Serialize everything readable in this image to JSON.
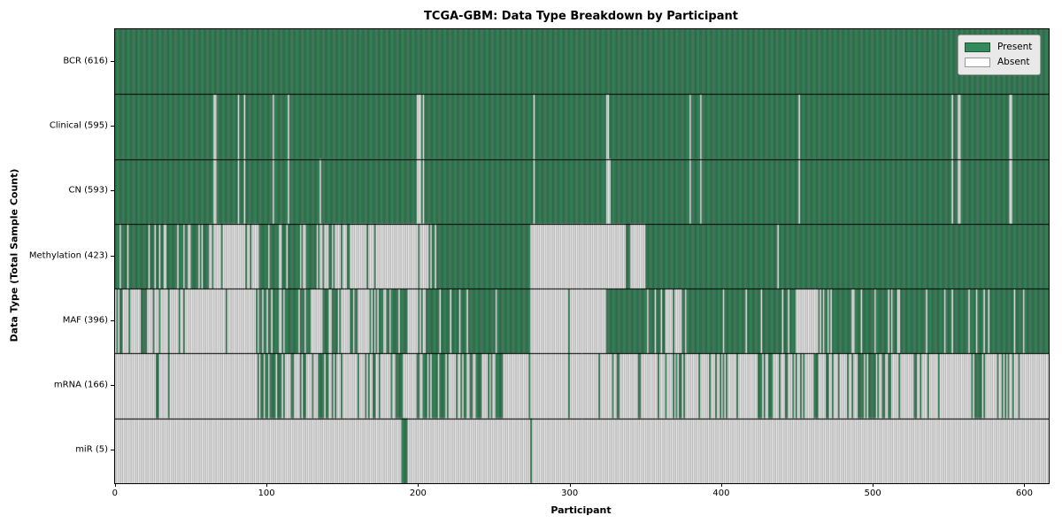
{
  "chart_data": {
    "type": "heatmap",
    "title": "TCGA-GBM: Data Type Breakdown by Participant",
    "xlabel": "Participant",
    "ylabel": "Data Type (Total Sample Count)",
    "x_ticks": [
      0,
      100,
      200,
      300,
      400,
      500,
      600
    ],
    "xlim": [
      -0.5,
      615.5
    ],
    "n_participants": 616,
    "grid": false,
    "legend_position": "upper right",
    "legend": [
      {
        "label": "Present",
        "color": "#348a5b"
      },
      {
        "label": "Absent",
        "color": "#ffffff"
      }
    ],
    "colors": {
      "present_fill": "#348a5b",
      "present_edge": "#18482e",
      "absent_fill": "#ffffff",
      "absent_edge": "#909090",
      "row_divider": "#000000",
      "legend_bg": "#e9e9e9"
    },
    "rows": [
      {
        "name": "BCR",
        "label": "BCR (616)",
        "count": 616,
        "segments": [
          [
            0,
            616,
            1
          ]
        ],
        "absent": []
      },
      {
        "name": "Clinical",
        "label": "Clinical (595)",
        "count": 595,
        "segments": [
          [
            0,
            616,
            1
          ]
        ],
        "absent": [
          65,
          66,
          81,
          85,
          104,
          114,
          199,
          200,
          201,
          203,
          276,
          324,
          325,
          379,
          386,
          451,
          552,
          556,
          557,
          590,
          591
        ]
      },
      {
        "name": "CN",
        "label": "CN (593)",
        "count": 593,
        "segments": [
          [
            0,
            616,
            1
          ]
        ],
        "absent": [
          65,
          66,
          81,
          85,
          104,
          114,
          135,
          199,
          200,
          201,
          203,
          276,
          324,
          325,
          326,
          379,
          386,
          451,
          552,
          556,
          557,
          590,
          591
        ]
      },
      {
        "name": "Methylation",
        "label": "Methylation (423)",
        "count": 423,
        "segments": [
          [
            0,
            62,
            0.75
          ],
          [
            62,
            95,
            0.1
          ],
          [
            95,
            133,
            0.8
          ],
          [
            133,
            212,
            0.15
          ],
          [
            212,
            274,
            1
          ],
          [
            274,
            337,
            0
          ],
          [
            337,
            340,
            1
          ],
          [
            340,
            350,
            0
          ],
          [
            350,
            437,
            1
          ],
          [
            437,
            438,
            0
          ],
          [
            438,
            616,
            1
          ]
        ],
        "absent": []
      },
      {
        "name": "MAF",
        "label": "MAF (396)",
        "count": 396,
        "segments": [
          [
            0,
            19,
            0.15
          ],
          [
            19,
            28,
            0.5
          ],
          [
            28,
            93,
            0.08
          ],
          [
            93,
            129,
            0.75
          ],
          [
            129,
            137,
            0.1
          ],
          [
            137,
            162,
            0.6
          ],
          [
            162,
            168,
            0
          ],
          [
            168,
            180,
            0.6
          ],
          [
            180,
            193,
            0.85
          ],
          [
            193,
            205,
            0.3
          ],
          [
            205,
            274,
            0.92
          ],
          [
            274,
            299,
            0
          ],
          [
            299,
            300,
            1
          ],
          [
            300,
            324,
            0
          ],
          [
            324,
            364,
            0.9
          ],
          [
            364,
            374,
            0.15
          ],
          [
            374,
            449,
            0.9
          ],
          [
            449,
            464,
            0.25
          ],
          [
            464,
            616,
            0.93
          ]
        ],
        "absent": []
      },
      {
        "name": "mRNA",
        "label": "mRNA (166)",
        "count": 166,
        "segments": [
          [
            0,
            27,
            0
          ],
          [
            27,
            29,
            1
          ],
          [
            29,
            35,
            0
          ],
          [
            35,
            36,
            1
          ],
          [
            36,
            93,
            0.02
          ],
          [
            93,
            110,
            0.6
          ],
          [
            110,
            116,
            0.1
          ],
          [
            116,
            133,
            0.5
          ],
          [
            133,
            141,
            0.7
          ],
          [
            141,
            162,
            0.35
          ],
          [
            162,
            199,
            0.3
          ],
          [
            199,
            220,
            0.75
          ],
          [
            220,
            228,
            0.3
          ],
          [
            228,
            255,
            0.7
          ],
          [
            255,
            274,
            0.1
          ],
          [
            274,
            299,
            0
          ],
          [
            299,
            300,
            1
          ],
          [
            300,
            329,
            0.05
          ],
          [
            329,
            460,
            0.28
          ],
          [
            460,
            530,
            0.4
          ],
          [
            530,
            560,
            0.15
          ],
          [
            560,
            593,
            0.35
          ],
          [
            593,
            616,
            0.1
          ]
        ],
        "absent": []
      },
      {
        "name": "miR",
        "label": "miR (5)",
        "count": 5,
        "segments": [
          [
            0,
            189,
            0
          ],
          [
            189,
            193,
            1
          ],
          [
            193,
            274,
            0
          ],
          [
            274,
            275,
            1
          ],
          [
            275,
            616,
            0
          ]
        ],
        "absent": []
      }
    ]
  }
}
